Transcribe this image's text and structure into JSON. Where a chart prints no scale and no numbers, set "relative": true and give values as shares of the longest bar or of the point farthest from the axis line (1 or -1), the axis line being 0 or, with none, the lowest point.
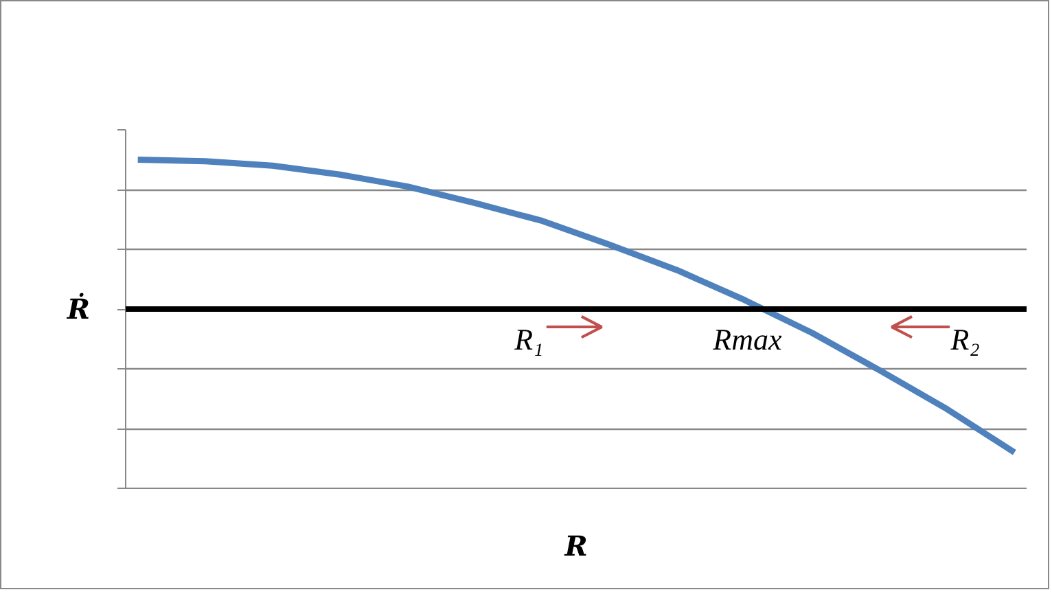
{
  "chart_data": {
    "type": "line",
    "relative": true,
    "xlabel": "R",
    "ylabel": "Ṙ",
    "categories": [
      null,
      null,
      null,
      null,
      null,
      null,
      null,
      null,
      null,
      null,
      null,
      null,
      null,
      null
    ],
    "series": [
      {
        "color": "#4f81bd",
        "values": [
          1,
          0.99,
          0.96,
          0.9,
          0.82,
          0.71,
          0.59,
          0.43,
          0.26,
          0.06,
          -0.16,
          -0.41,
          -0.67,
          -0.96
        ]
      }
    ],
    "annotations": [
      "R₁",
      "Rmax",
      "R₂"
    ],
    "grid": "y",
    "marker": "none",
    "line_style": "solid"
  }
}
